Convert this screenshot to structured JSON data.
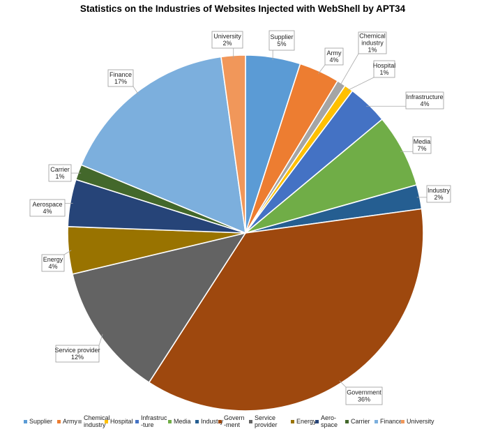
{
  "chart_data": {
    "type": "pie",
    "title": "Statistics on the Industries of Websites Injected with WebShell by APT34",
    "slices": [
      {
        "label": [
          "Supplier"
        ],
        "pct_label": "5%",
        "value": 5.0,
        "color": "#5b9bd5",
        "legend": [
          "Supplier"
        ]
      },
      {
        "label": [
          "Army"
        ],
        "pct_label": "4%",
        "value": 3.7,
        "color": "#ed7d31",
        "legend": [
          "Army"
        ]
      },
      {
        "label": [
          "Chemical",
          "industry"
        ],
        "pct_label": "1%",
        "value": 0.8,
        "color": "#a5a5a5",
        "legend": [
          "Chemical",
          "industry"
        ]
      },
      {
        "label": [
          "Hospital"
        ],
        "pct_label": "1%",
        "value": 0.8,
        "color": "#ffc000",
        "legend": [
          "Hospital"
        ]
      },
      {
        "label": [
          "Infrastructure"
        ],
        "pct_label": "4%",
        "value": 3.7,
        "color": "#4472c4",
        "legend": [
          "Infrastruc",
          "-ture"
        ]
      },
      {
        "label": [
          "Media"
        ],
        "pct_label": "7%",
        "value": 6.7,
        "color": "#70ad47",
        "legend": [
          "Media"
        ]
      },
      {
        "label": [
          "Industry"
        ],
        "pct_label": "2%",
        "value": 2.2,
        "color": "#255e91",
        "legend": [
          "Industry"
        ]
      },
      {
        "label": [
          "Government"
        ],
        "pct_label": "36%",
        "value": 36.4,
        "color": "#9e480e",
        "legend": [
          "Govern",
          "-ment"
        ]
      },
      {
        "label": [
          "Service provider"
        ],
        "pct_label": "12%",
        "value": 12.2,
        "color": "#636363",
        "legend": [
          "Service",
          "provider"
        ]
      },
      {
        "label": [
          "Energy"
        ],
        "pct_label": "4%",
        "value": 4.3,
        "color": "#997300",
        "legend": [
          "Energy"
        ]
      },
      {
        "label": [
          "Aerospace"
        ],
        "pct_label": "4%",
        "value": 4.3,
        "color": "#264478",
        "legend": [
          "Aero-",
          "space"
        ]
      },
      {
        "label": [
          "Carrier"
        ],
        "pct_label": "1%",
        "value": 1.4,
        "color": "#43682b",
        "legend": [
          "Carrier"
        ]
      },
      {
        "label": [
          "Finance"
        ],
        "pct_label": "17%",
        "value": 16.6,
        "color": "#7cafdd",
        "legend": [
          "Finance"
        ]
      },
      {
        "label": [
          "University"
        ],
        "pct_label": "2%",
        "value": 2.2,
        "color": "#f1975a",
        "legend": [
          "University"
        ]
      }
    ],
    "start_position": "12 o'clock",
    "direction": "clockwise",
    "legend_position": "bottom"
  }
}
